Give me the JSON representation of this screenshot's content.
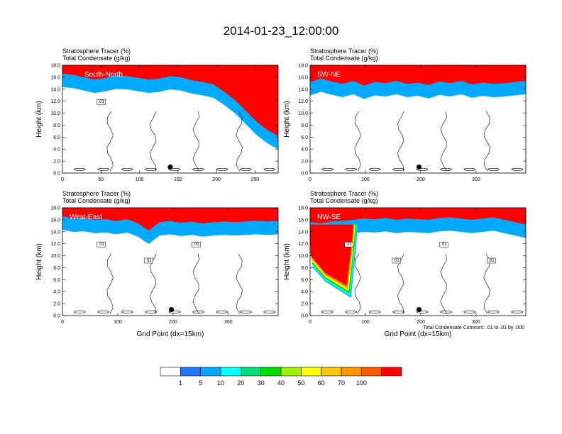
{
  "figure_title": "2014-01-23_12:00:00",
  "chart_data": [
    {
      "type": "heatmap",
      "panel_label": "South-North",
      "header_lines": [
        "Stratosphere Tracer   (%)",
        "Total Condensate   (g/kg)"
      ],
      "ylabel": "Height (km)",
      "xlabel": "",
      "xlim": [
        0,
        280
      ],
      "ylim": [
        0,
        18
      ],
      "x_ticks": [
        "0",
        "50",
        "100",
        "150",
        "200",
        "250"
      ],
      "y_ticks": [
        "0.0",
        "2.0",
        "4.0",
        "6.0",
        "8.0",
        "10.0",
        "12.0",
        "14.0",
        "16.0",
        "18.0"
      ],
      "contour_labels": [
        ".01"
      ],
      "marker_point": [
        140,
        1.0
      ],
      "tracer_base_height_km": [
        15.6,
        15.4,
        15.0,
        14.6,
        14.9,
        15.3,
        15.2,
        14.9,
        14.6,
        14.8,
        15.2,
        15.0,
        14.5,
        14.2,
        13.8,
        12.6,
        11.2,
        9.4,
        7.6,
        6.2,
        5.2
      ]
    },
    {
      "type": "heatmap",
      "panel_label": "SW-NE",
      "header_lines": [
        "Stratosphere Tracer   (%)",
        "Total Condensate   (g/kg)"
      ],
      "ylabel": "Height (km)",
      "xlabel": "",
      "xlim": [
        0,
        390
      ],
      "ylim": [
        0,
        18
      ],
      "x_ticks": [
        "0",
        "100",
        "200",
        "300"
      ],
      "y_ticks": [
        "0.0",
        "2.0",
        "4.0",
        "6.0",
        "8.0",
        "10.0",
        "12.0",
        "14.0",
        "16.0",
        "18.0"
      ],
      "contour_labels": [],
      "marker_point": [
        197,
        1.0
      ],
      "tracer_base_height_km": [
        14.2,
        14.8,
        14.3,
        13.9,
        14.4,
        13.6,
        14.2,
        14.0,
        14.4,
        13.9,
        14.1,
        13.7,
        14.3,
        14.0,
        14.4,
        13.8,
        14.1,
        13.9,
        14.0,
        14.2,
        14.4
      ]
    },
    {
      "type": "heatmap",
      "panel_label": "West-East",
      "header_lines": [
        "Stratosphere Tracer   (%)",
        "Total Condensate   (g/kg)"
      ],
      "ylabel": "Height (km)",
      "xlabel": "Grid Point (dx=15km)",
      "xlim": [
        0,
        390
      ],
      "ylim": [
        0,
        18
      ],
      "x_ticks": [
        "0",
        "100",
        "200",
        "300"
      ],
      "y_ticks": [
        "0.0",
        "2.0",
        "4.0",
        "6.0",
        "8.0",
        "10.0",
        "12.0",
        "14.0",
        "16.0",
        "18.0"
      ],
      "contour_labels": [
        ".01",
        ".01",
        ".01"
      ],
      "marker_point": [
        197,
        1.0
      ],
      "tracer_base_height_km": [
        15.6,
        15.2,
        15.3,
        15.0,
        15.1,
        14.8,
        15.1,
        14.4,
        13.2,
        14.6,
        14.8,
        14.5,
        14.7,
        14.4,
        14.6,
        14.7,
        14.6,
        14.7,
        14.8,
        14.7,
        14.8
      ]
    },
    {
      "type": "heatmap",
      "panel_label": "NW-SE",
      "header_lines": [
        "Stratosphere Tracer   (%)",
        "Total Condensate   (g/kg)"
      ],
      "ylabel": "Height (km)",
      "xlabel": "Grid Point (dx=15km)",
      "xlim": [
        0,
        390
      ],
      "ylim": [
        0,
        18
      ],
      "x_ticks": [
        "0",
        "100",
        "200",
        "300"
      ],
      "y_ticks": [
        "0.0",
        "2.0",
        "4.0",
        "6.0",
        "8.0",
        "10.0",
        "12.0",
        "14.0",
        "16.0",
        "18.0"
      ],
      "contour_labels": [
        ".01",
        ".01",
        ".01",
        ".01"
      ],
      "note": "Total Condensate Contours: .01 to .01 by .000",
      "marker_point": [
        197,
        1.0
      ],
      "tracer_base_height_km": [
        14.6,
        14.4,
        14.7,
        14.8,
        15.0,
        15.2,
        15.1,
        15.3,
        15.0,
        15.2,
        15.1,
        15.0,
        15.3,
        15.4,
        15.2,
        15.0,
        15.2,
        15.4,
        15.0,
        14.6,
        14.2
      ],
      "intrusion": {
        "x": [
          10,
          80
        ],
        "base_height_km": 3.5
      }
    }
  ],
  "colorbar": {
    "labels": [
      "1",
      "5",
      "10",
      "20",
      "30",
      "40",
      "50",
      "60",
      "70",
      "100"
    ],
    "colors": [
      "#ffffff",
      "#1e78ff",
      "#00aaff",
      "#00ffff",
      "#00e07a",
      "#00dd00",
      "#a0f000",
      "#ffff00",
      "#ffc800",
      "#ff9600",
      "#ff5a00",
      "#ff0000"
    ]
  }
}
